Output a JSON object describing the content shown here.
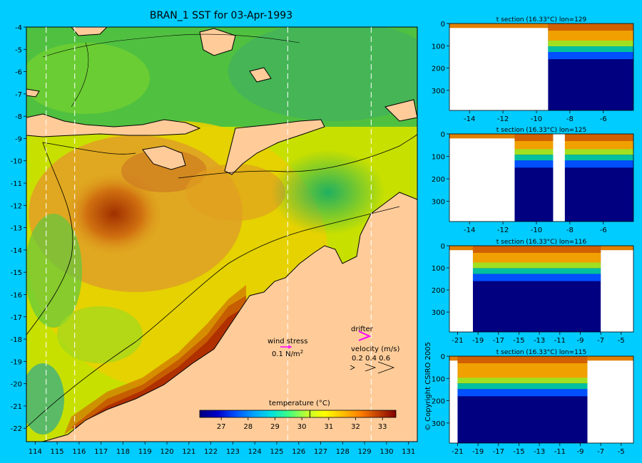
{
  "title": "BRAN_1 SST for 03-Apr-1993",
  "copyright": "© Copyright CSIRO 2005",
  "colors": {
    "background": "#00ccff",
    "land": "#ffcc99",
    "deep": "#000066",
    "colormap": [
      "#000080",
      "#0000c8",
      "#0050ff",
      "#00a0ff",
      "#00e0e0",
      "#40ff80",
      "#c0ff30",
      "#ffff00",
      "#ffc000",
      "#ff8000",
      "#c04000",
      "#800000"
    ]
  },
  "chart_data": [
    {
      "type": "heatmap",
      "title": "BRAN_1 SST for 03-Apr-1993",
      "x_ticks": [
        114,
        115,
        116,
        117,
        118,
        119,
        120,
        121,
        122,
        123,
        124,
        125,
        126,
        127,
        128,
        129,
        130,
        131
      ],
      "y_ticks": [
        -4,
        -5,
        -6,
        -7,
        -8,
        -9,
        -10,
        -11,
        -12,
        -13,
        -14,
        -15,
        -16,
        -17,
        -18,
        -19,
        -20,
        -21,
        -22
      ],
      "xlim": [
        113.6,
        131.4
      ],
      "ylim": [
        -22.6,
        -4
      ],
      "section_lines_lon": [
        114.5,
        115.8,
        125.5,
        129.3
      ],
      "colorbar": {
        "label": "temperature (°C)",
        "ticks": [
          27,
          28,
          29,
          30,
          31,
          32,
          33
        ],
        "range": [
          26.2,
          33.5
        ],
        "marker": 30.3
      },
      "legend": {
        "wind_label": "wind stress",
        "wind_scale": "0.1 N/m",
        "wind_sup": "2",
        "drifter_label": "drifter",
        "velocity_label": "velocity (m/s)",
        "velocity_values": "0.2 0.4 0.6"
      }
    },
    {
      "type": "heatmap",
      "title": "t section (16.33°C) lon=129",
      "x_ticks": [
        -14,
        -12,
        -10,
        -8,
        -6
      ],
      "xlim": [
        -15.2,
        -4.2
      ],
      "y_ticks": [
        0,
        100,
        200,
        300
      ],
      "ylim": [
        390,
        0
      ],
      "profile": {
        "ocean_start": -9.3,
        "isotherm_depth": 160
      }
    },
    {
      "type": "heatmap",
      "title": "t section (16.33°C) lon=125",
      "x_ticks": [
        -14,
        -12,
        -10,
        -8,
        -6
      ],
      "xlim": [
        -15.2,
        -4.2
      ],
      "y_ticks": [
        0,
        100,
        200,
        300
      ],
      "ylim": [
        390,
        0
      ],
      "profile": {
        "ocean_start": -11.3,
        "gap": [
          -9.0,
          -8.3
        ],
        "isotherm_depth": 150
      }
    },
    {
      "type": "heatmap",
      "title": "t section (16.33°C) lon=116",
      "x_ticks": [
        -21,
        -19,
        -17,
        -15,
        -13,
        -11,
        -9,
        -7,
        -5
      ],
      "xlim": [
        -21.8,
        -3.8
      ],
      "y_ticks": [
        0,
        100,
        200,
        300
      ],
      "ylim": [
        390,
        0
      ],
      "profile": {
        "ocean_start": -19.5,
        "ocean_end": -7.0,
        "isotherm_depth": 160
      }
    },
    {
      "type": "heatmap",
      "title": "t section (16.33°C) lon=115",
      "x_ticks": [
        -21,
        -19,
        -17,
        -15,
        -13,
        -11,
        -9,
        -7,
        -5
      ],
      "xlim": [
        -21.8,
        -3.8
      ],
      "y_ticks": [
        0,
        100,
        200,
        300
      ],
      "ylim": [
        390,
        0
      ],
      "profile": {
        "ocean_start": -21.0,
        "ocean_end": -8.3,
        "isotherm_depth": 180
      }
    }
  ]
}
